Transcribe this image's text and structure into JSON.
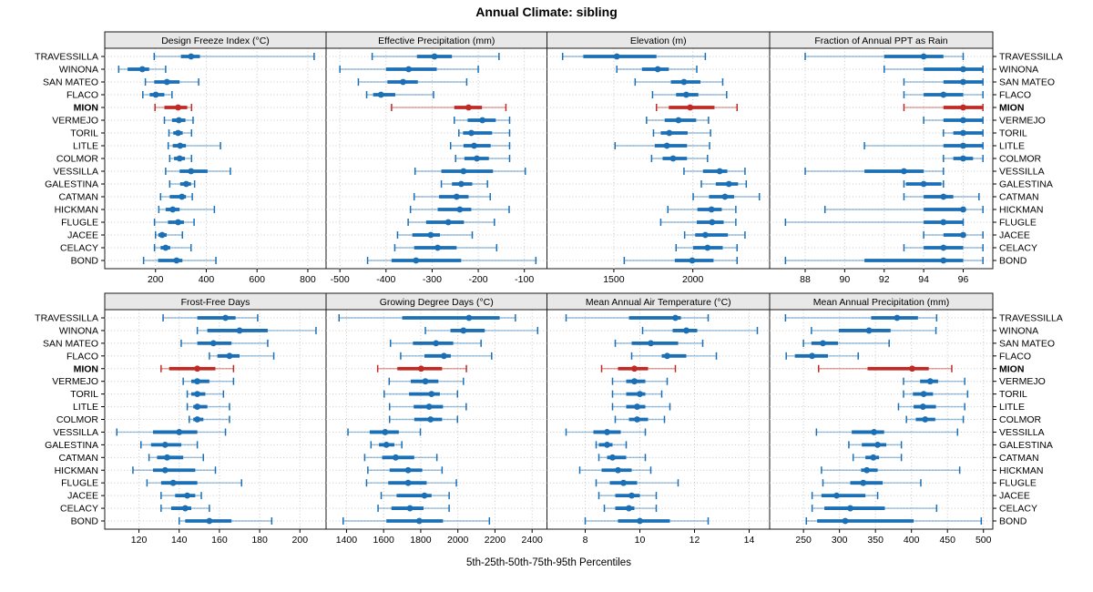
{
  "chart_data": {
    "type": "dotplot-percentile-trellis",
    "title": "Annual Climate: sibling",
    "xlabel": "5th-25th-50th-75th-95th Percentiles",
    "percentiles": [
      5,
      25,
      50,
      75,
      95
    ],
    "layout": {
      "rows": 2,
      "cols": 4,
      "grid": "dotted",
      "legend": "none",
      "y_labels_left": true,
      "y_labels_right": true
    },
    "colors": {
      "series": "#1b6fb5",
      "highlight": "#bf2a25",
      "strip_bg": "#e8e8e8",
      "panel_border": "#1a1a1a",
      "grid": "#c9c9c9",
      "text": "#000000"
    },
    "stations": [
      "TRAVESSILLA",
      "WINONA",
      "SAN MATEO",
      "FLACO",
      "MION",
      "VERMEJO",
      "TORIL",
      "LITLE",
      "COLMOR",
      "VESSILLA",
      "GALESTINA",
      "CATMAN",
      "HICKMAN",
      "FLUGLE",
      "JACEE",
      "CELACY",
      "BOND"
    ],
    "highlight_station": "MION",
    "panels": [
      {
        "title": "Design Freeze Index (°C)",
        "row": 0,
        "col": 0,
        "xlim": [
          0,
          872
        ],
        "ticks": [
          200,
          400,
          600,
          800
        ],
        "values": [
          [
            195,
            300,
            340,
            375,
            825
          ],
          [
            55,
            90,
            148,
            175,
            240
          ],
          [
            160,
            195,
            245,
            295,
            370
          ],
          [
            150,
            177,
            201,
            235,
            265
          ],
          [
            198,
            235,
            289,
            325,
            342
          ],
          [
            235,
            265,
            292,
            318,
            348
          ],
          [
            253,
            270,
            289,
            307,
            342
          ],
          [
            250,
            268,
            297,
            320,
            456
          ],
          [
            256,
            273,
            295,
            316,
            342
          ],
          [
            240,
            295,
            340,
            405,
            495
          ],
          [
            256,
            297,
            321,
            340,
            354
          ],
          [
            220,
            256,
            304,
            320,
            345
          ],
          [
            213,
            240,
            268,
            295,
            432
          ],
          [
            196,
            249,
            289,
            312,
            352
          ],
          [
            200,
            211,
            226,
            244,
            306
          ],
          [
            196,
            220,
            240,
            258,
            340
          ],
          [
            153,
            210,
            283,
            306,
            438
          ]
        ]
      },
      {
        "title": "Effective Precipitation (mm)",
        "row": 0,
        "col": 1,
        "xlim": [
          -530,
          -51
        ],
        "ticks": [
          -500,
          -400,
          -300,
          -200,
          -100
        ],
        "values": [
          [
            -430,
            -333,
            -295,
            -257,
            -155
          ],
          [
            -500,
            -400,
            -351,
            -290,
            -200
          ],
          [
            -460,
            -397,
            -363,
            -331,
            -225
          ],
          [
            -442,
            -428,
            -411,
            -380,
            -297
          ],
          [
            -388,
            -252,
            -221,
            -192,
            -140
          ],
          [
            -252,
            -223,
            -191,
            -162,
            -132
          ],
          [
            -242,
            -233,
            -215,
            -170,
            -132
          ],
          [
            -260,
            -232,
            -209,
            -173,
            -132
          ],
          [
            -249,
            -230,
            -203,
            -177,
            -132
          ],
          [
            -337,
            -280,
            -232,
            -168,
            -98
          ],
          [
            -280,
            -257,
            -237,
            -213,
            -180
          ],
          [
            -339,
            -285,
            -247,
            -221,
            -174
          ],
          [
            -347,
            -288,
            -240,
            -215,
            -133
          ],
          [
            -352,
            -313,
            -265,
            -231,
            -165
          ],
          [
            -375,
            -343,
            -303,
            -283,
            -213
          ],
          [
            -381,
            -339,
            -288,
            -247,
            -160
          ],
          [
            -440,
            -388,
            -335,
            -237,
            -75
          ]
        ]
      },
      {
        "title": "Elevation (m)",
        "row": 0,
        "col": 2,
        "xlim": [
          1077,
          2486
        ],
        "ticks": [
          1500,
          2000
        ],
        "values": [
          [
            1176,
            1307,
            1519,
            1770,
            2079
          ],
          [
            1519,
            1678,
            1778,
            1848,
            2025
          ],
          [
            1635,
            1861,
            1944,
            2048,
            2189
          ],
          [
            1745,
            1894,
            1958,
            2035,
            2214
          ],
          [
            1770,
            1848,
            1983,
            2137,
            2280
          ],
          [
            1707,
            1822,
            1909,
            2021,
            2099
          ],
          [
            1751,
            1797,
            1851,
            1967,
            2112
          ],
          [
            1508,
            1759,
            1836,
            1963,
            2106
          ],
          [
            1739,
            1809,
            1875,
            1963,
            2093
          ],
          [
            1944,
            2064,
            2170,
            2218,
            2330
          ],
          [
            2054,
            2145,
            2228,
            2286,
            2338
          ],
          [
            2002,
            2102,
            2203,
            2261,
            2421
          ],
          [
            1842,
            2029,
            2118,
            2183,
            2272
          ],
          [
            1797,
            2025,
            2122,
            2195,
            2272
          ],
          [
            1948,
            2015,
            2079,
            2222,
            2330
          ],
          [
            1894,
            2002,
            2093,
            2189,
            2280
          ],
          [
            1566,
            1886,
            1996,
            2131,
            2280
          ]
        ]
      },
      {
        "title": "Fraction of Annual PPT as Rain",
        "row": 0,
        "col": 3,
        "xlim": [
          86.2,
          97.5
        ],
        "ticks": [
          88,
          90,
          92,
          94,
          96
        ],
        "values": [
          [
            88,
            92,
            94,
            95,
            96
          ],
          [
            92,
            94,
            96,
            97,
            97
          ],
          [
            93,
            95,
            96,
            97,
            97
          ],
          [
            93,
            94,
            95,
            96,
            97
          ],
          [
            93,
            95,
            96,
            97,
            97
          ],
          [
            94,
            95,
            96,
            97,
            97
          ],
          [
            95,
            95.5,
            96,
            97,
            97
          ],
          [
            91,
            95,
            96,
            97,
            97
          ],
          [
            95,
            95.5,
            96,
            96.5,
            97
          ],
          [
            88,
            91,
            93,
            94,
            95
          ],
          [
            93,
            93.1,
            94,
            94.9,
            95
          ],
          [
            93,
            94,
            95,
            95.5,
            96.8
          ],
          [
            89,
            94,
            96,
            96,
            97
          ],
          [
            87,
            94,
            95,
            96,
            96
          ],
          [
            94,
            95,
            96,
            96,
            97
          ],
          [
            93,
            94,
            95,
            96,
            97
          ],
          [
            87,
            91,
            95,
            96,
            97
          ]
        ]
      },
      {
        "title": "Frost-Free Days",
        "row": 1,
        "col": 0,
        "xlim": [
          103,
          213
        ],
        "ticks": [
          120,
          140,
          160,
          180,
          200
        ],
        "values": [
          [
            132,
            149,
            163,
            168,
            179
          ],
          [
            149,
            154,
            170,
            184,
            208
          ],
          [
            141,
            149,
            157,
            166,
            184
          ],
          [
            155,
            159,
            165,
            170,
            187
          ],
          [
            131,
            135,
            149,
            158,
            167
          ],
          [
            142,
            146,
            149,
            155,
            167
          ],
          [
            144,
            146,
            149,
            153,
            162
          ],
          [
            144,
            147,
            149,
            154,
            165
          ],
          [
            145,
            147,
            149,
            152,
            165
          ],
          [
            109,
            127,
            140,
            149,
            163
          ],
          [
            121,
            126,
            133,
            141,
            149
          ],
          [
            125,
            129,
            134,
            142,
            152
          ],
          [
            117,
            127,
            133,
            148,
            158
          ],
          [
            124,
            131,
            137,
            149,
            171
          ],
          [
            131,
            138,
            144,
            148,
            151
          ],
          [
            131,
            136,
            143,
            146,
            155
          ],
          [
            140,
            143,
            155,
            166,
            186
          ]
        ]
      },
      {
        "title": "Growing Degree Days (°C)",
        "row": 1,
        "col": 1,
        "xlim": [
          1290,
          2480
        ],
        "ticks": [
          1400,
          1600,
          1800,
          2000,
          2200,
          2400
        ],
        "values": [
          [
            1360,
            1700,
            2060,
            2225,
            2310
          ],
          [
            1825,
            1960,
            2030,
            2145,
            2430
          ],
          [
            1637,
            1758,
            1882,
            1975,
            2125
          ],
          [
            1692,
            1820,
            1925,
            1962,
            2182
          ],
          [
            1568,
            1674,
            1802,
            1915,
            2046
          ],
          [
            1630,
            1746,
            1825,
            1895,
            2030
          ],
          [
            1603,
            1737,
            1858,
            1903,
            1998
          ],
          [
            1632,
            1762,
            1845,
            1920,
            2045
          ],
          [
            1632,
            1765,
            1853,
            1915,
            1998
          ],
          [
            1408,
            1525,
            1608,
            1682,
            1798
          ],
          [
            1532,
            1575,
            1615,
            1658,
            1698
          ],
          [
            1498,
            1592,
            1665,
            1765,
            1887
          ],
          [
            1515,
            1632,
            1732,
            1808,
            1915
          ],
          [
            1508,
            1625,
            1732,
            1832,
            1992
          ],
          [
            1587,
            1670,
            1820,
            1858,
            1953
          ],
          [
            1570,
            1642,
            1742,
            1815,
            1953
          ],
          [
            1382,
            1615,
            1792,
            1920,
            2170
          ]
        ]
      },
      {
        "title": "Mean Annual Air Temperature (°C)",
        "row": 1,
        "col": 2,
        "xlim": [
          6.6,
          14.75
        ],
        "ticks": [
          8,
          10,
          12,
          14
        ],
        "values": [
          [
            7.3,
            9.6,
            11.3,
            11.5,
            12.5
          ],
          [
            10.1,
            11.2,
            11.7,
            12.1,
            14.3
          ],
          [
            9.1,
            9.7,
            10.4,
            11.4,
            12.3
          ],
          [
            9.7,
            10.8,
            11.0,
            11.7,
            12.8
          ],
          [
            8.6,
            9.2,
            9.8,
            10.3,
            11.3
          ],
          [
            9.0,
            9.5,
            9.8,
            10.2,
            11.0
          ],
          [
            9.0,
            9.5,
            10.0,
            10.2,
            10.8
          ],
          [
            9.0,
            9.5,
            9.9,
            10.2,
            11.1
          ],
          [
            9.1,
            9.6,
            9.9,
            10.3,
            10.9
          ],
          [
            7.3,
            8.3,
            8.8,
            9.3,
            10.2
          ],
          [
            8.4,
            8.5,
            8.8,
            9.0,
            9.5
          ],
          [
            8.5,
            8.8,
            9.0,
            9.5,
            10.2
          ],
          [
            7.8,
            8.6,
            9.2,
            9.7,
            10.4
          ],
          [
            8.4,
            8.9,
            9.4,
            9.9,
            11.4
          ],
          [
            8.5,
            9.1,
            9.7,
            10.0,
            10.6
          ],
          [
            8.7,
            9.1,
            9.6,
            9.8,
            10.6
          ],
          [
            8.0,
            9.2,
            10.0,
            11.1,
            12.5
          ]
        ]
      },
      {
        "title": "Mean Annual Precipitation (mm)",
        "row": 1,
        "col": 3,
        "xlim": [
          203,
          513
        ],
        "ticks": [
          250,
          300,
          350,
          400,
          450,
          500
        ],
        "values": [
          [
            225,
            344,
            380,
            409,
            435
          ],
          [
            261,
            299,
            341,
            371,
            434
          ],
          [
            250,
            261,
            277,
            298,
            369
          ],
          [
            226,
            238,
            262,
            284,
            326
          ],
          [
            271,
            339,
            401,
            424,
            456
          ],
          [
            389,
            412,
            426,
            437,
            474
          ],
          [
            389,
            402,
            417,
            430,
            478
          ],
          [
            382,
            403,
            416,
            434,
            474
          ],
          [
            393,
            406,
            419,
            433,
            472
          ],
          [
            268,
            317,
            348,
            362,
            464
          ],
          [
            313,
            331,
            353,
            365,
            386
          ],
          [
            319,
            336,
            347,
            355,
            386
          ],
          [
            275,
            330,
            338,
            353,
            467
          ],
          [
            277,
            315,
            333,
            360,
            413
          ],
          [
            262,
            275,
            296,
            336,
            353
          ],
          [
            262,
            279,
            315,
            363,
            435
          ],
          [
            254,
            269,
            308,
            403,
            497
          ]
        ]
      }
    ]
  }
}
